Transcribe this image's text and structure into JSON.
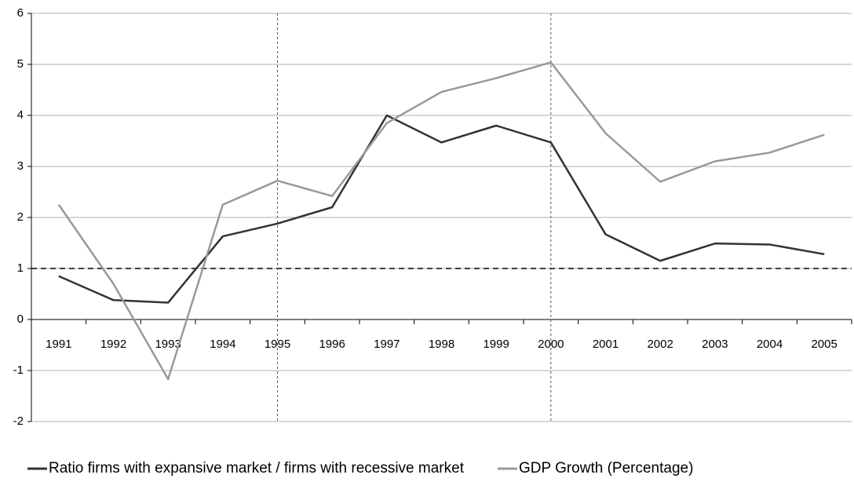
{
  "chart_data": {
    "type": "line",
    "categories": [
      "1991",
      "1992",
      "1993",
      "1994",
      "1995",
      "1996",
      "1997",
      "1998",
      "1999",
      "2000",
      "2001",
      "2002",
      "2003",
      "2004",
      "2005"
    ],
    "series": [
      {
        "name": "Ratio firms with expansive market / firms with recessive market",
        "color": "#333333",
        "values": [
          0.85,
          0.38,
          0.33,
          1.63,
          1.88,
          2.2,
          4.0,
          3.47,
          3.8,
          3.47,
          1.67,
          1.15,
          1.49,
          1.47,
          1.28
        ]
      },
      {
        "name": "GDP Growth (Percentage)",
        "color": "#999999",
        "values": [
          2.25,
          0.7,
          -1.17,
          2.25,
          2.72,
          2.42,
          3.85,
          4.46,
          4.73,
          5.04,
          3.65,
          2.7,
          3.1,
          3.27,
          3.62
        ]
      }
    ],
    "ylim": [
      -2,
      6
    ],
    "yticks": [
      -2,
      -1,
      0,
      1,
      2,
      3,
      4,
      5,
      6
    ],
    "grid": true,
    "reference_lines": {
      "y": 1,
      "x": [
        "1995",
        "2000"
      ]
    },
    "legend": "bottom"
  }
}
